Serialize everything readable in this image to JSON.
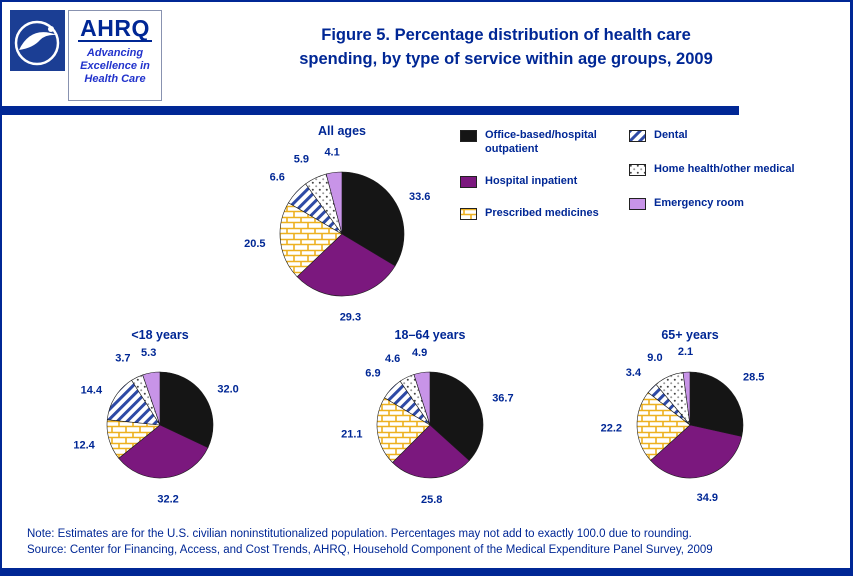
{
  "page": {
    "title_line1": "Figure 5. Percentage distribution of health care",
    "title_line2": "spending, by type of service within age groups, 2009"
  },
  "ahrq": {
    "word": "AHRQ",
    "tagline": [
      "Advancing",
      "Excellence in",
      "Health Care"
    ]
  },
  "legend": {
    "items": [
      {
        "label": "Office-based/hospital outpatient"
      },
      {
        "label": "Hospital inpatient"
      },
      {
        "label": "Prescribed medicines"
      },
      {
        "label": "Dental"
      },
      {
        "label": "Home health/other medical"
      },
      {
        "label": "Emergency room"
      }
    ]
  },
  "chart_data": [
    {
      "type": "pie",
      "title": "All ages",
      "categories": [
        "Office-based/hospital outpatient",
        "Hospital inpatient",
        "Prescribed medicines",
        "Dental",
        "Home health/other medical",
        "Emergency room"
      ],
      "values": [
        33.6,
        29.3,
        20.5,
        6.6,
        5.9,
        4.1
      ]
    },
    {
      "type": "pie",
      "title": "<18 years",
      "categories": [
        "Office-based/hospital outpatient",
        "Hospital inpatient",
        "Prescribed medicines",
        "Dental",
        "Home health/other medical",
        "Emergency room"
      ],
      "values": [
        32.0,
        32.2,
        12.4,
        14.4,
        3.7,
        5.3
      ]
    },
    {
      "type": "pie",
      "title": "18–64 years",
      "categories": [
        "Office-based/hospital outpatient",
        "Hospital inpatient",
        "Prescribed medicines",
        "Dental",
        "Home health/other medical",
        "Emergency room"
      ],
      "values": [
        36.7,
        25.8,
        21.1,
        6.9,
        4.6,
        4.9
      ]
    },
    {
      "type": "pie",
      "title": "65+ years",
      "categories": [
        "Office-based/hospital outpatient",
        "Hospital inpatient",
        "Prescribed medicines",
        "Dental",
        "Home health/other medical",
        "Emergency room"
      ],
      "values": [
        28.5,
        34.9,
        22.2,
        3.4,
        9.0,
        2.1
      ]
    }
  ],
  "footer": {
    "note": "Note: Estimates are for the U.S. civilian noninstitutionalized population. Percentages may not add to exactly 100.0 due to rounding.",
    "source": "Source: Center for Financing, Access, and Cost Trends, AHRQ, Household Component of the Medical Expenditure Panel Survey, 2009"
  },
  "styles": {
    "navy": "#002795",
    "hhs_logo_blue": "#1B3E94",
    "ahrq_tagline_blue": "#2233CC",
    "slice_colors": {
      "office": "#151515",
      "inpatient": "#7B187E",
      "medicines": "#EDB120",
      "dental": "#2E4AA5",
      "homehealth": "#444444",
      "emergency": "#C894E8"
    }
  }
}
